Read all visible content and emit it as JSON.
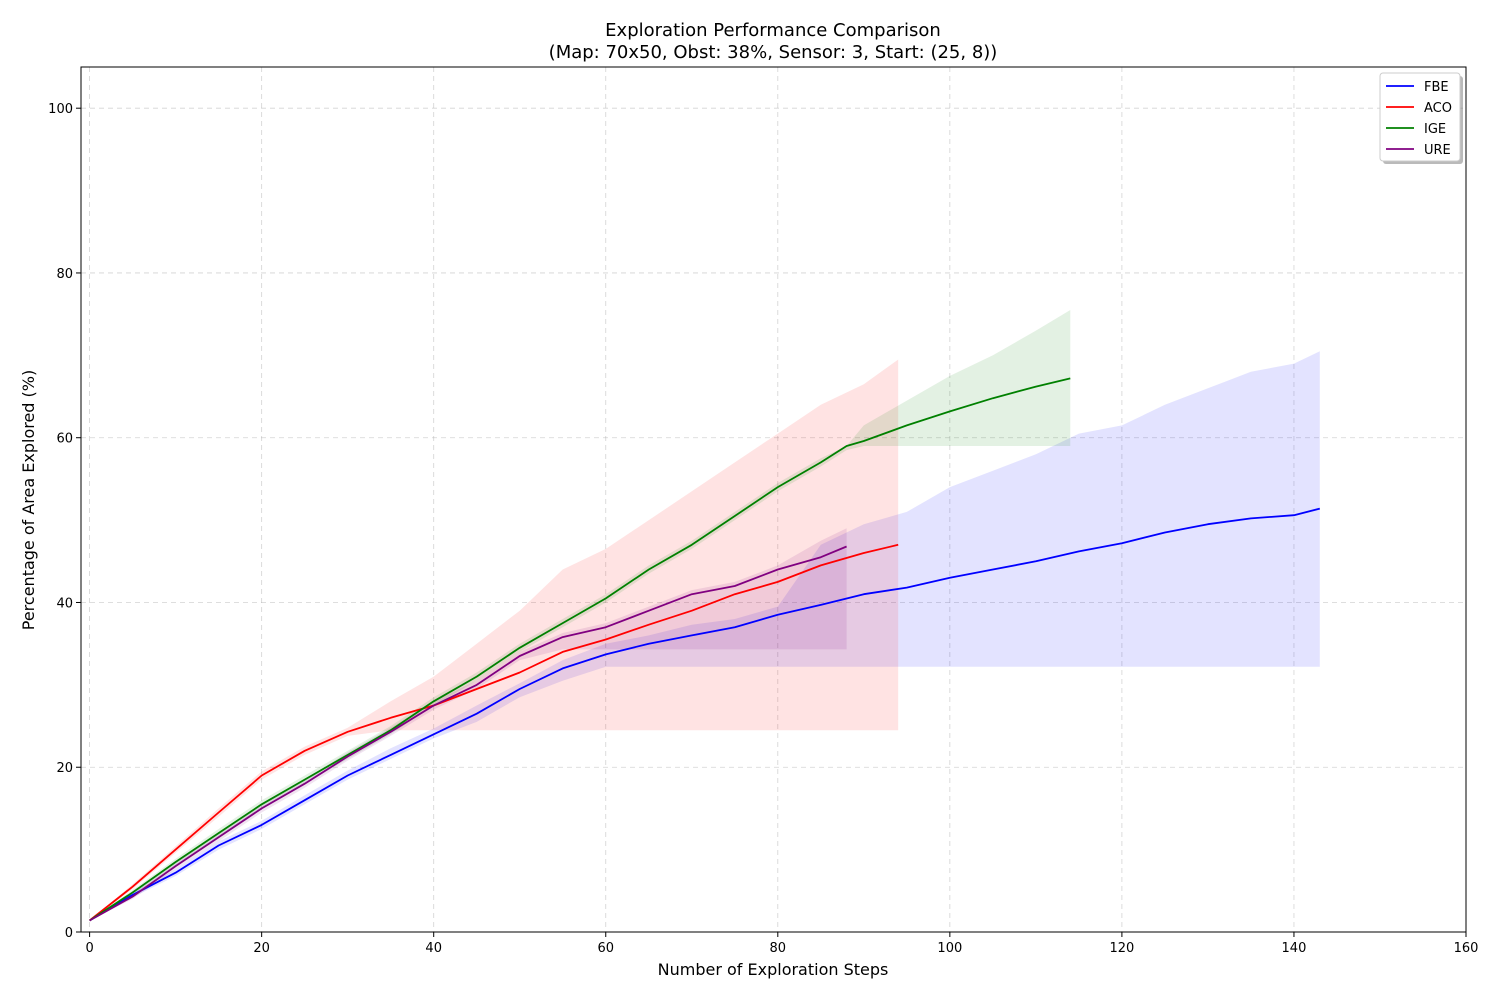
{
  "chart_data": {
    "type": "line",
    "title": "Exploration Performance Comparison",
    "subtitle": "(Map: 70x50, Obst: 38%, Sensor: 3, Start: (25, 8))",
    "xlabel": "Number of Exploration Steps",
    "ylabel": "Percentage of Area Explored (%)",
    "xlim": [
      -1,
      160
    ],
    "ylim": [
      0,
      105
    ],
    "xticks": [
      0,
      20,
      40,
      60,
      80,
      100,
      120,
      140,
      160
    ],
    "yticks": [
      0,
      20,
      40,
      60,
      80,
      100
    ],
    "grid": true,
    "legend_position": "top-right",
    "series": [
      {
        "name": "FBE",
        "color": "#0000ff",
        "x": [
          0,
          5,
          10,
          15,
          20,
          25,
          30,
          35,
          40,
          45,
          50,
          55,
          60,
          65,
          70,
          75,
          80,
          85,
          90,
          95,
          100,
          105,
          110,
          115,
          120,
          125,
          130,
          135,
          140,
          143
        ],
        "y": [
          1.4,
          4.5,
          7.2,
          10.5,
          13.0,
          16.0,
          19.0,
          21.5,
          24.0,
          26.5,
          29.5,
          32.0,
          33.7,
          35.0,
          36.0,
          37.0,
          38.5,
          39.7,
          41.0,
          41.8,
          43.0,
          44.0,
          45.0,
          46.2,
          47.2,
          48.5,
          49.5,
          50.2,
          50.6,
          51.4
        ],
        "band_upper": [
          1.4,
          4.8,
          7.6,
          11.0,
          13.5,
          16.6,
          19.6,
          22.3,
          24.7,
          27.5,
          30.2,
          33.0,
          35.0,
          36.0,
          37.3,
          38.0,
          39.5,
          47.0,
          49.5,
          51.0,
          54.0,
          56.0,
          58.0,
          60.5,
          61.5,
          64.0,
          66.0,
          68.0,
          69.0,
          70.5
        ],
        "band_lower": [
          1.4,
          4.2,
          6.8,
          10.0,
          12.5,
          15.5,
          18.5,
          21.0,
          23.5,
          25.5,
          28.5,
          30.5,
          32.2,
          32.2,
          32.2,
          32.2,
          32.2,
          32.2,
          32.2,
          32.2,
          32.2,
          32.2,
          32.2,
          32.2,
          32.2,
          32.2,
          32.2,
          32.2,
          32.2,
          32.2
        ]
      },
      {
        "name": "ACO",
        "color": "#ff0000",
        "x": [
          0,
          5,
          10,
          15,
          20,
          25,
          30,
          35,
          40,
          45,
          50,
          55,
          60,
          65,
          70,
          75,
          80,
          85,
          90,
          94
        ],
        "y": [
          1.4,
          5.5,
          10.0,
          14.5,
          19.0,
          22.0,
          24.3,
          26.0,
          27.5,
          29.5,
          31.5,
          34.0,
          35.5,
          37.3,
          39.0,
          41.0,
          42.5,
          44.5,
          46.0,
          47.0
        ],
        "band_upper": [
          1.4,
          5.8,
          10.4,
          15.0,
          19.5,
          22.5,
          24.8,
          28.0,
          31.0,
          35.0,
          39.0,
          44.0,
          46.5,
          50.0,
          53.5,
          57.0,
          60.5,
          64.0,
          66.5,
          69.5
        ],
        "band_lower": [
          1.4,
          5.2,
          9.6,
          14.0,
          18.5,
          21.5,
          23.8,
          24.5,
          24.5,
          24.5,
          24.5,
          24.5,
          24.5,
          24.5,
          24.5,
          24.5,
          24.5,
          24.5,
          24.5,
          24.5
        ]
      },
      {
        "name": "IGE",
        "color": "#008000",
        "x": [
          0,
          5,
          10,
          15,
          20,
          25,
          30,
          35,
          40,
          45,
          50,
          55,
          60,
          65,
          70,
          75,
          80,
          85,
          88,
          90,
          95,
          100,
          105,
          110,
          114
        ],
        "y": [
          1.4,
          4.8,
          8.5,
          12.0,
          15.5,
          18.5,
          21.5,
          24.5,
          28.0,
          31.0,
          34.5,
          37.5,
          40.5,
          44.0,
          47.0,
          50.5,
          54.0,
          57.0,
          59.0,
          59.6,
          61.5,
          63.2,
          64.8,
          66.2,
          67.2
        ],
        "band_upper": [
          1.4,
          5.1,
          8.9,
          12.5,
          16.0,
          19.0,
          22.0,
          25.0,
          28.5,
          31.5,
          35.0,
          38.0,
          41.0,
          44.5,
          47.5,
          51.0,
          54.5,
          57.5,
          59.0,
          61.5,
          64.5,
          67.5,
          70.0,
          73.0,
          75.5
        ],
        "band_lower": [
          1.4,
          4.5,
          8.1,
          11.5,
          15.0,
          18.0,
          21.0,
          24.0,
          27.5,
          30.5,
          34.0,
          37.0,
          40.0,
          43.5,
          46.5,
          50.0,
          53.5,
          56.5,
          58.5,
          59.0,
          59.0,
          59.0,
          59.0,
          59.0,
          59.0
        ]
      },
      {
        "name": "URE",
        "color": "#800080",
        "x": [
          0,
          5,
          10,
          15,
          20,
          25,
          30,
          35,
          40,
          45,
          50,
          55,
          60,
          65,
          70,
          75,
          80,
          85,
          88
        ],
        "y": [
          1.4,
          4.3,
          8.0,
          11.5,
          15.0,
          18.0,
          21.3,
          24.3,
          27.5,
          30.0,
          33.5,
          35.8,
          37.0,
          39.0,
          41.0,
          42.0,
          44.0,
          45.5,
          46.8
        ],
        "band_upper": [
          1.4,
          4.6,
          8.4,
          12.0,
          15.5,
          18.5,
          21.8,
          24.8,
          28.0,
          30.5,
          34.0,
          36.3,
          37.5,
          39.5,
          41.5,
          42.5,
          44.5,
          47.5,
          49.0
        ],
        "band_lower": [
          1.4,
          4.0,
          7.6,
          11.0,
          14.5,
          17.5,
          20.8,
          23.8,
          27.0,
          29.5,
          33.0,
          34.3,
          34.3,
          34.3,
          34.3,
          34.3,
          34.3,
          34.3,
          34.3
        ]
      }
    ]
  }
}
